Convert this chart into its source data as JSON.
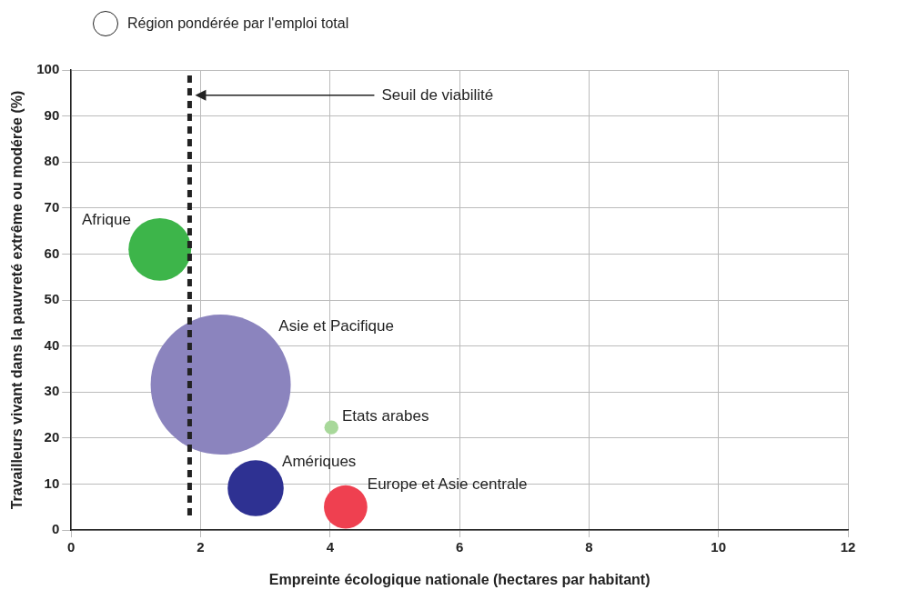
{
  "chart_data": {
    "type": "bubble",
    "xlabel": "Empreinte écologique nationale (hectares par habitant)",
    "ylabel": "Travailleurs vivant dans la pauvreté extrême ou modérée (%)",
    "legend_title": "Région pondérée par l'emploi total",
    "series": [
      {
        "name": "Afrique",
        "color": "#3db54a",
        "x": [
          1.37
        ],
        "values": [
          61
        ],
        "sizes": [
          0.2
        ]
      },
      {
        "name": "Asie et Pacifique",
        "color": "#8b84be",
        "x": [
          2.31
        ],
        "values": [
          31.6
        ],
        "sizes": [
          1
        ]
      },
      {
        "name": "Etats arabes",
        "color": "#a8d89a",
        "x": [
          4.02
        ],
        "values": [
          22.3
        ],
        "sizes": [
          0.01
        ]
      },
      {
        "name": "Amériques",
        "color": "#2e3192",
        "x": [
          2.85
        ],
        "values": [
          9.1
        ],
        "sizes": [
          0.16
        ]
      },
      {
        "name": "Europe et Asie centrale",
        "color": "#ef4050",
        "x": [
          4.24
        ],
        "values": [
          5.0
        ],
        "sizes": [
          0.096
        ]
      }
    ],
    "xlim": [
      0,
      12
    ],
    "xticks": [
      0,
      2,
      4,
      6,
      8,
      10,
      12
    ],
    "ylim": [
      0,
      100
    ],
    "yticks": [
      0,
      10,
      20,
      30,
      40,
      50,
      60,
      70,
      80,
      90,
      100
    ],
    "grid": true,
    "ref_lines": [
      {
        "axis": "x",
        "value": 1.83,
        "color": "#222222",
        "line_style": "dashed"
      }
    ],
    "annotations": [
      "Seuil de viabilité"
    ]
  }
}
